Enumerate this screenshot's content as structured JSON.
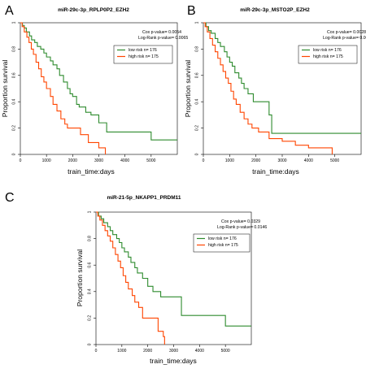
{
  "chart_data": [
    {
      "type": "line",
      "panel_letter": "A",
      "title": "miR-29c-3p_RPLP0P2_EZH2",
      "xlabel": "train_time:days",
      "ylabel": "Proportion survival",
      "xlim": [
        0,
        6000
      ],
      "ylim": [
        0,
        1
      ],
      "x_ticks": [
        "0",
        "1000",
        "2000",
        "3000",
        "4000",
        "5000"
      ],
      "y_ticks": [
        "0",
        "0.2",
        "0.4",
        "0.6",
        "0.8",
        "1"
      ],
      "cox_text": "Cox p-value= 0.0054",
      "logrank_text": "Log-Rank p-value= 0.0065",
      "legend_position": "top-right",
      "series": [
        {
          "name": "low risk n= 176",
          "color": "#2e8b2e",
          "points": [
            [
              0,
              1
            ],
            [
              80,
              0.98
            ],
            [
              150,
              0.96
            ],
            [
              230,
              0.93
            ],
            [
              350,
              0.9
            ],
            [
              430,
              0.87
            ],
            [
              550,
              0.85
            ],
            [
              650,
              0.82
            ],
            [
              780,
              0.8
            ],
            [
              900,
              0.77
            ],
            [
              1000,
              0.74
            ],
            [
              1150,
              0.71
            ],
            [
              1250,
              0.68
            ],
            [
              1400,
              0.65
            ],
            [
              1500,
              0.6
            ],
            [
              1650,
              0.55
            ],
            [
              1800,
              0.5
            ],
            [
              1900,
              0.46
            ],
            [
              2000,
              0.44
            ],
            [
              2150,
              0.38
            ],
            [
              2250,
              0.36
            ],
            [
              2500,
              0.32
            ],
            [
              2700,
              0.3
            ],
            [
              3000,
              0.24
            ],
            [
              3300,
              0.17
            ],
            [
              4000,
              0.17
            ],
            [
              5000,
              0.11
            ],
            [
              6000,
              0.11
            ]
          ]
        },
        {
          "name": "high risk n= 175",
          "color": "#ff4500",
          "points": [
            [
              0,
              1
            ],
            [
              70,
              0.97
            ],
            [
              150,
              0.93
            ],
            [
              250,
              0.89
            ],
            [
              330,
              0.85
            ],
            [
              420,
              0.8
            ],
            [
              500,
              0.76
            ],
            [
              600,
              0.7
            ],
            [
              700,
              0.65
            ],
            [
              800,
              0.59
            ],
            [
              900,
              0.55
            ],
            [
              1000,
              0.5
            ],
            [
              1150,
              0.44
            ],
            [
              1250,
              0.38
            ],
            [
              1400,
              0.33
            ],
            [
              1550,
              0.27
            ],
            [
              1700,
              0.23
            ],
            [
              1800,
              0.2
            ],
            [
              2000,
              0.2
            ],
            [
              2300,
              0.15
            ],
            [
              2600,
              0.09
            ],
            [
              2900,
              0.09
            ],
            [
              3000,
              0.05
            ],
            [
              3250,
              0.05
            ],
            [
              3250,
              0
            ]
          ]
        }
      ]
    },
    {
      "type": "line",
      "panel_letter": "B",
      "title": "miR-29c-3p_MSTO2P_EZH2",
      "xlabel": "train_time:days",
      "ylabel": "Proportion survival",
      "xlim": [
        0,
        6000
      ],
      "ylim": [
        0,
        1
      ],
      "x_ticks": [
        "0",
        "1000",
        "2000",
        "3000",
        "4000",
        "5000"
      ],
      "y_ticks": [
        "0",
        "0.2",
        "0.4",
        "0.6",
        "0.8",
        "1"
      ],
      "cox_text": "Cox p-value= 0.0028",
      "logrank_text": "Log-Rank p-value= 0.0032",
      "legend_position": "top-right",
      "series": [
        {
          "name": "low risk n= 176",
          "color": "#2e8b2e",
          "points": [
            [
              0,
              1
            ],
            [
              100,
              0.97
            ],
            [
              200,
              0.94
            ],
            [
              300,
              0.92
            ],
            [
              450,
              0.88
            ],
            [
              550,
              0.85
            ],
            [
              650,
              0.82
            ],
            [
              800,
              0.78
            ],
            [
              900,
              0.74
            ],
            [
              1000,
              0.7
            ],
            [
              1100,
              0.67
            ],
            [
              1200,
              0.62
            ],
            [
              1350,
              0.58
            ],
            [
              1450,
              0.54
            ],
            [
              1550,
              0.5
            ],
            [
              1700,
              0.46
            ],
            [
              1900,
              0.4
            ],
            [
              2300,
              0.4
            ],
            [
              2500,
              0.3
            ],
            [
              2600,
              0.16
            ],
            [
              6000,
              0.16
            ]
          ]
        },
        {
          "name": "high risk n= 175",
          "color": "#ff4500",
          "points": [
            [
              0,
              1
            ],
            [
              70,
              0.97
            ],
            [
              150,
              0.93
            ],
            [
              250,
              0.88
            ],
            [
              350,
              0.83
            ],
            [
              450,
              0.78
            ],
            [
              550,
              0.73
            ],
            [
              650,
              0.68
            ],
            [
              750,
              0.63
            ],
            [
              850,
              0.58
            ],
            [
              950,
              0.54
            ],
            [
              1050,
              0.48
            ],
            [
              1150,
              0.42
            ],
            [
              1250,
              0.38
            ],
            [
              1400,
              0.32
            ],
            [
              1550,
              0.27
            ],
            [
              1700,
              0.23
            ],
            [
              1850,
              0.2
            ],
            [
              2100,
              0.17
            ],
            [
              2500,
              0.12
            ],
            [
              3000,
              0.1
            ],
            [
              3500,
              0.07
            ],
            [
              4000,
              0.05
            ],
            [
              4900,
              0.05
            ],
            [
              4900,
              0
            ]
          ]
        }
      ]
    },
    {
      "type": "line",
      "panel_letter": "C",
      "title": "miR-21-5p_NKAPP1_PRDM11",
      "xlabel": "train_time:days",
      "ylabel": "Proportion survival",
      "xlim": [
        0,
        6000
      ],
      "ylim": [
        0,
        1
      ],
      "x_ticks": [
        "0",
        "1000",
        "2000",
        "3000",
        "4000",
        "5000"
      ],
      "y_ticks": [
        "0",
        "0.2",
        "0.4",
        "0.6",
        "0.8",
        "1"
      ],
      "cox_text": "Cox p-value= 0.0329",
      "logrank_text": "Log-Rank p-value= 0.0146",
      "legend_position": "top-right",
      "series": [
        {
          "name": "low risk n= 176",
          "color": "#2e8b2e",
          "points": [
            [
              0,
              1
            ],
            [
              100,
              0.97
            ],
            [
              200,
              0.95
            ],
            [
              300,
              0.92
            ],
            [
              450,
              0.89
            ],
            [
              550,
              0.86
            ],
            [
              650,
              0.83
            ],
            [
              800,
              0.8
            ],
            [
              900,
              0.77
            ],
            [
              1000,
              0.73
            ],
            [
              1100,
              0.7
            ],
            [
              1250,
              0.66
            ],
            [
              1350,
              0.62
            ],
            [
              1500,
              0.58
            ],
            [
              1600,
              0.54
            ],
            [
              1800,
              0.5
            ],
            [
              2000,
              0.44
            ],
            [
              2200,
              0.4
            ],
            [
              2500,
              0.36
            ],
            [
              3000,
              0.36
            ],
            [
              3300,
              0.22
            ],
            [
              4000,
              0.22
            ],
            [
              5000,
              0.14
            ],
            [
              6000,
              0.14
            ]
          ]
        },
        {
          "name": "high risk n= 175",
          "color": "#ff4500",
          "points": [
            [
              0,
              1
            ],
            [
              70,
              0.97
            ],
            [
              150,
              0.94
            ],
            [
              250,
              0.9
            ],
            [
              350,
              0.86
            ],
            [
              450,
              0.82
            ],
            [
              550,
              0.78
            ],
            [
              650,
              0.73
            ],
            [
              750,
              0.68
            ],
            [
              850,
              0.63
            ],
            [
              950,
              0.58
            ],
            [
              1050,
              0.52
            ],
            [
              1150,
              0.47
            ],
            [
              1250,
              0.42
            ],
            [
              1400,
              0.37
            ],
            [
              1500,
              0.32
            ],
            [
              1650,
              0.28
            ],
            [
              1800,
              0.2
            ],
            [
              2200,
              0.2
            ],
            [
              2400,
              0.1
            ],
            [
              2600,
              0.06
            ],
            [
              2650,
              0
            ]
          ]
        }
      ]
    }
  ]
}
